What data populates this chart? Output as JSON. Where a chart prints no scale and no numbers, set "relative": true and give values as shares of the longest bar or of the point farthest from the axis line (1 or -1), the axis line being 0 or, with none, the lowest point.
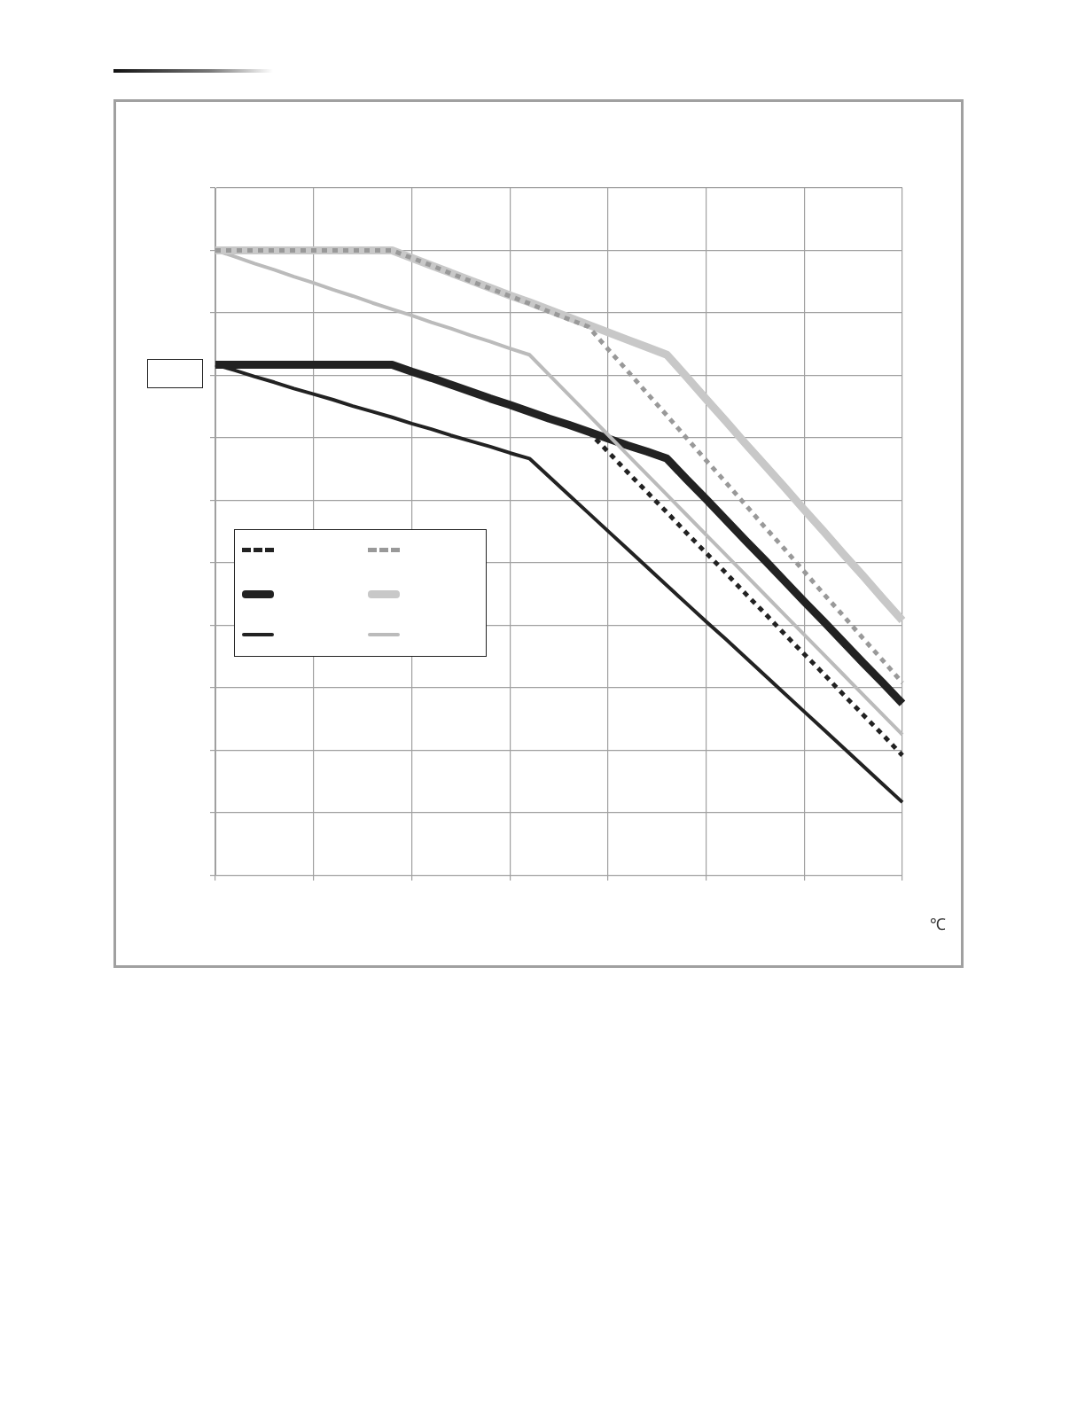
{
  "chart_data": {
    "type": "line",
    "relative": true,
    "xlabel": "℃",
    "grid": true,
    "legend": false,
    "marker": "none",
    "categories": [
      null,
      null,
      null,
      null,
      null,
      null,
      null,
      null,
      null,
      null,
      null,
      null,
      null,
      null,
      null,
      null,
      null,
      null,
      null,
      null,
      null,
      null,
      null,
      null,
      null,
      null,
      null,
      null,
      null,
      null,
      null,
      null,
      null,
      null,
      null,
      null
    ],
    "series": [
      {
        "color": "#999999",
        "line_style": "dashed",
        "values": [
          1,
          1,
          1,
          1,
          1,
          1,
          1,
          1,
          1,
          1,
          0.988,
          0.976,
          0.963,
          0.951,
          0.939,
          0.927,
          0.915,
          0.902,
          0.89,
          0.878,
          0.842,
          0.807,
          0.771,
          0.736,
          0.7,
          0.664,
          0.629,
          0.593,
          0.557,
          0.522,
          0.486,
          0.45,
          0.415,
          0.379,
          0.344,
          0.308
        ]
      },
      {
        "color": "#c8c8c8",
        "line_style": "solid",
        "values": [
          1,
          1,
          1,
          1,
          1,
          1,
          1,
          1,
          1,
          1,
          0.988,
          0.976,
          0.964,
          0.952,
          0.94,
          0.928,
          0.917,
          0.905,
          0.893,
          0.881,
          0.869,
          0.857,
          0.845,
          0.833,
          0.798,
          0.762,
          0.727,
          0.691,
          0.656,
          0.621,
          0.585,
          0.55,
          0.514,
          0.479,
          0.443,
          0.408
        ]
      },
      {
        "color": "#bbbbbb",
        "line_style": "solid",
        "values": [
          1,
          0.99,
          0.979,
          0.969,
          0.958,
          0.948,
          0.937,
          0.927,
          0.916,
          0.906,
          0.896,
          0.885,
          0.875,
          0.864,
          0.854,
          0.843,
          0.833,
          0.801,
          0.769,
          0.737,
          0.705,
          0.673,
          0.641,
          0.609,
          0.577,
          0.545,
          0.513,
          0.481,
          0.449,
          0.417,
          0.385,
          0.353,
          0.321,
          0.289,
          0.257,
          0.225
        ]
      },
      {
        "color": "#222222",
        "line_style": "solid",
        "values": [
          0.817,
          0.817,
          0.817,
          0.817,
          0.817,
          0.817,
          0.817,
          0.817,
          0.817,
          0.817,
          0.806,
          0.796,
          0.785,
          0.774,
          0.763,
          0.753,
          0.742,
          0.731,
          0.721,
          0.71,
          0.699,
          0.688,
          0.678,
          0.667,
          0.634,
          0.602,
          0.569,
          0.536,
          0.504,
          0.471,
          0.438,
          0.406,
          0.373,
          0.34,
          0.308,
          0.275
        ]
      },
      {
        "color": "#222222",
        "line_style": "solid",
        "values": [
          0.817,
          0.808,
          0.798,
          0.789,
          0.779,
          0.77,
          0.761,
          0.751,
          0.742,
          0.733,
          0.723,
          0.714,
          0.704,
          0.695,
          0.686,
          0.676,
          0.667,
          0.638,
          0.609,
          0.58,
          0.551,
          0.522,
          0.493,
          0.464,
          0.435,
          0.406,
          0.378,
          0.349,
          0.32,
          0.291,
          0.262,
          0.233,
          0.204,
          0.175,
          0.146,
          0.117
        ]
      },
      {
        "color": "#222222",
        "line_style": "dashed",
        "values": [
          null,
          null,
          null,
          null,
          null,
          null,
          null,
          null,
          null,
          null,
          null,
          null,
          null,
          null,
          null,
          null,
          null,
          null,
          null,
          0.71,
          0.678,
          0.645,
          0.613,
          0.581,
          0.548,
          0.516,
          0.484,
          0.451,
          0.419,
          0.386,
          0.354,
          0.322,
          0.289,
          0.257,
          0.225,
          0.192
        ]
      }
    ]
  }
}
